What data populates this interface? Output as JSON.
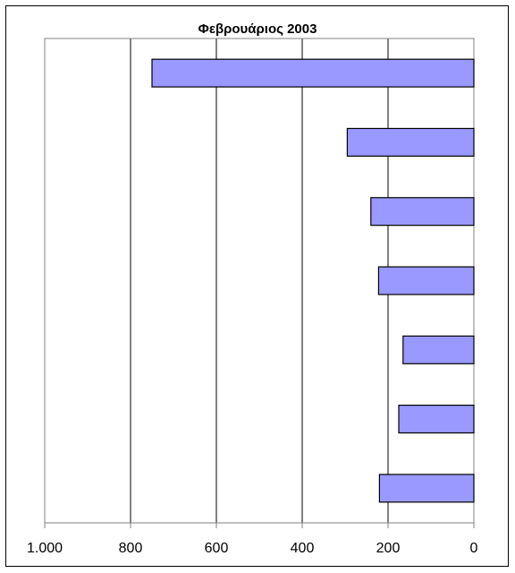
{
  "chart_data": {
    "type": "bar",
    "orientation": "horizontal",
    "x_axis_reversed": true,
    "title": "Φεβρουάριος 2003",
    "xlabel": "",
    "ylabel": "",
    "xlim": [
      0,
      1000
    ],
    "x_ticks": [
      1000,
      800,
      600,
      400,
      200,
      0
    ],
    "x_tick_labels": [
      "1.000",
      "800",
      "600",
      "400",
      "200",
      "0"
    ],
    "categories": [
      "",
      "",
      "",
      "",
      "",
      "",
      ""
    ],
    "values": [
      750,
      295,
      240,
      222,
      165,
      175,
      220
    ],
    "grid": true,
    "legend": "none",
    "colors": {
      "bar_fill": "#9999ff",
      "bar_stroke": "#000000",
      "grid": "#000000",
      "axis": "#808080"
    }
  }
}
